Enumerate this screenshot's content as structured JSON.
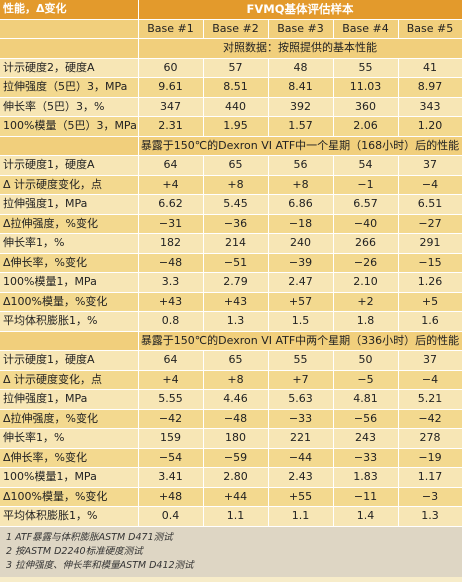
{
  "header": {
    "left_title": "性能，Δ变化",
    "right_title": "FVMQ基体评估样本"
  },
  "columns": [
    "Base #1",
    "Base #2",
    "Base #3",
    "Base #4",
    "Base #5"
  ],
  "sections": [
    {
      "title": "对照数据：按照提供的基本性能",
      "rows": [
        {
          "label": "计示硬度2，硬度A",
          "values": [
            "60",
            "57",
            "48",
            "55",
            "41"
          ]
        },
        {
          "label": "拉伸强度（5巴）3，MPa",
          "values": [
            "9.61",
            "8.51",
            "8.41",
            "11.03",
            "8.97"
          ]
        },
        {
          "label": "伸长率（5巴）3，%",
          "values": [
            "347",
            "440",
            "392",
            "360",
            "343"
          ]
        },
        {
          "label": "100%模量（5巴）3，MPa",
          "values": [
            "2.31",
            "1.95",
            "1.57",
            "2.06",
            "1.20"
          ]
        }
      ]
    },
    {
      "title": "暴露于150℃的Dexron VI ATF中一个星期（168小时）后的性能",
      "rows": [
        {
          "label": "计示硬度1，硬度A",
          "values": [
            "64",
            "65",
            "56",
            "54",
            "37"
          ]
        },
        {
          "label": "Δ 计示硬度变化，点",
          "values": [
            "+4",
            "+8",
            "+8",
            "−1",
            "−4"
          ]
        },
        {
          "label": "拉伸强度1，MPa",
          "values": [
            "6.62",
            "5.45",
            "6.86",
            "6.57",
            "6.51"
          ]
        },
        {
          "label": "Δ拉伸强度，%变化",
          "values": [
            "−31",
            "−36",
            "−18",
            "−40",
            "−27"
          ]
        },
        {
          "label": "伸长率1，%",
          "values": [
            "182",
            "214",
            "240",
            "266",
            "291"
          ]
        },
        {
          "label": "Δ伸长率，%变化",
          "values": [
            "−48",
            "−51",
            "−39",
            "−26",
            "−15"
          ]
        },
        {
          "label": "100%模量1，MPa",
          "values": [
            "3.3",
            "2.79",
            "2.47",
            "2.10",
            "1.26"
          ]
        },
        {
          "label": "Δ100%模量，%变化",
          "values": [
            "+43",
            "+43",
            "+57",
            "+2",
            "+5"
          ]
        },
        {
          "label": "平均体积膨胀1，%",
          "values": [
            "0.8",
            "1.3",
            "1.5",
            "1.8",
            "1.6"
          ]
        }
      ]
    },
    {
      "title": "暴露于150℃的Dexron VI ATF中两个星期（336小时）后的性能",
      "rows": [
        {
          "label": "计示硬度1，硬度A",
          "values": [
            "64",
            "65",
            "55",
            "50",
            "37"
          ]
        },
        {
          "label": "Δ 计示硬度变化，点",
          "values": [
            "+4",
            "+8",
            "+7",
            "−5",
            "−4"
          ]
        },
        {
          "label": "拉伸强度1，MPa",
          "values": [
            "5.55",
            "4.46",
            "5.63",
            "4.81",
            "5.21"
          ]
        },
        {
          "label": "Δ拉伸强度，%变化",
          "values": [
            "−42",
            "−48",
            "−33",
            "−56",
            "−42"
          ]
        },
        {
          "label": "伸长率1，%",
          "values": [
            "159",
            "180",
            "221",
            "243",
            "278"
          ]
        },
        {
          "label": "Δ伸长率，%变化",
          "values": [
            "−54",
            "−59",
            "−44",
            "−33",
            "−19"
          ]
        },
        {
          "label": "100%模量1，MPa",
          "values": [
            "3.41",
            "2.80",
            "2.43",
            "1.83",
            "1.17"
          ]
        },
        {
          "label": "Δ100%模量，%变化",
          "values": [
            "+48",
            "+44",
            "+55",
            "−11",
            "−3"
          ]
        },
        {
          "label": "平均体积膨胀1，%",
          "values": [
            "0.4",
            "1.1",
            "1.1",
            "1.4",
            "1.3"
          ]
        }
      ]
    }
  ],
  "notes": [
    "1 ATF暴露与体积膨胀ASTM D471测试",
    "2 按ASTM D2240标准硬度测试",
    "3 拉伸强度、伸长率和模量ASTM D412测试"
  ],
  "colors": {
    "header_bg": "#e39a2c",
    "subheader_bg": "#f1cf7c",
    "row_light": "#f7e6b5",
    "row_dark": "#f3d98f",
    "notes_bg": "#ded6c4"
  }
}
